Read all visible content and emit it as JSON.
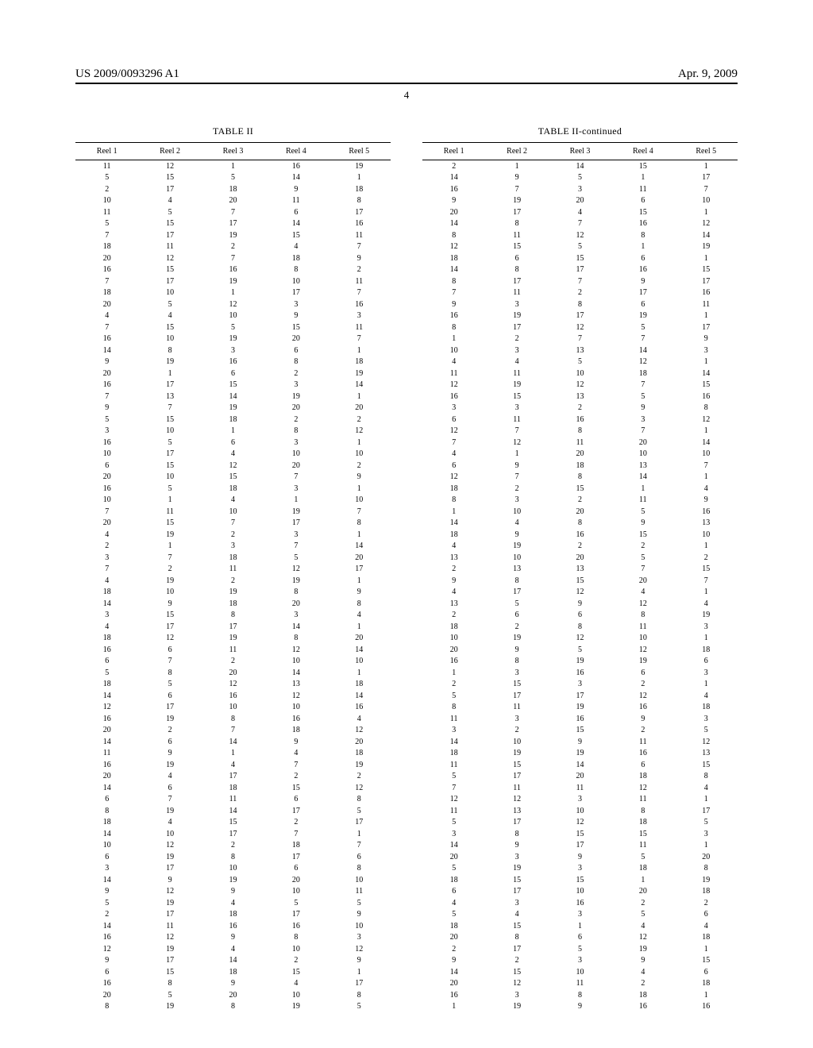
{
  "header": {
    "pub_number": "US 2009/0093296 A1",
    "pub_date": "Apr. 9, 2009"
  },
  "page_number": "4",
  "table_left": {
    "title": "TABLE II",
    "columns": [
      "Reel 1",
      "Reel 2",
      "Reel 3",
      "Reel 4",
      "Reel 5"
    ],
    "rows": [
      [
        11,
        12,
        1,
        16,
        19
      ],
      [
        5,
        15,
        5,
        14,
        1
      ],
      [
        2,
        17,
        18,
        9,
        18
      ],
      [
        10,
        4,
        20,
        11,
        8
      ],
      [
        11,
        5,
        7,
        6,
        17
      ],
      [
        5,
        15,
        17,
        14,
        16
      ],
      [
        7,
        17,
        19,
        15,
        11
      ],
      [
        18,
        11,
        2,
        4,
        7
      ],
      [
        20,
        12,
        7,
        18,
        9
      ],
      [
        16,
        15,
        16,
        8,
        2
      ],
      [
        7,
        17,
        19,
        10,
        11
      ],
      [
        18,
        10,
        1,
        17,
        7
      ],
      [
        20,
        5,
        12,
        3,
        16
      ],
      [
        4,
        4,
        10,
        9,
        3
      ],
      [
        7,
        15,
        5,
        15,
        11
      ],
      [
        16,
        10,
        19,
        20,
        7
      ],
      [
        14,
        8,
        3,
        6,
        1
      ],
      [
        9,
        19,
        16,
        8,
        18
      ],
      [
        20,
        1,
        6,
        2,
        19
      ],
      [
        16,
        17,
        15,
        3,
        14
      ],
      [
        7,
        13,
        14,
        19,
        1
      ],
      [
        9,
        7,
        19,
        20,
        20
      ],
      [
        5,
        15,
        18,
        2,
        2
      ],
      [
        3,
        10,
        1,
        8,
        12
      ],
      [
        16,
        5,
        6,
        3,
        1
      ],
      [
        10,
        17,
        4,
        10,
        10
      ],
      [
        6,
        15,
        12,
        20,
        2
      ],
      [
        20,
        10,
        15,
        7,
        9
      ],
      [
        16,
        5,
        18,
        3,
        1
      ],
      [
        10,
        1,
        4,
        1,
        10
      ],
      [
        7,
        11,
        10,
        19,
        7
      ],
      [
        20,
        15,
        7,
        17,
        8
      ],
      [
        4,
        19,
        2,
        3,
        1
      ],
      [
        2,
        1,
        3,
        7,
        14
      ],
      [
        3,
        7,
        18,
        5,
        20
      ],
      [
        7,
        2,
        11,
        12,
        17
      ],
      [
        4,
        19,
        2,
        19,
        1
      ],
      [
        18,
        10,
        19,
        8,
        9
      ],
      [
        14,
        9,
        18,
        20,
        8
      ],
      [
        3,
        15,
        8,
        3,
        4
      ],
      [
        4,
        17,
        17,
        14,
        1
      ],
      [
        18,
        12,
        19,
        8,
        20
      ],
      [
        16,
        6,
        11,
        12,
        14
      ],
      [
        6,
        7,
        2,
        10,
        10
      ],
      [
        5,
        8,
        20,
        14,
        1
      ],
      [
        18,
        5,
        12,
        13,
        18
      ],
      [
        14,
        6,
        16,
        12,
        14
      ],
      [
        12,
        17,
        10,
        10,
        16
      ],
      [
        16,
        19,
        8,
        16,
        4
      ],
      [
        20,
        2,
        7,
        18,
        12
      ],
      [
        14,
        6,
        14,
        9,
        20
      ],
      [
        11,
        9,
        1,
        4,
        18
      ],
      [
        16,
        19,
        4,
        7,
        19
      ],
      [
        20,
        4,
        17,
        2,
        2
      ],
      [
        14,
        6,
        18,
        15,
        12
      ],
      [
        6,
        7,
        11,
        6,
        8
      ],
      [
        8,
        19,
        14,
        17,
        5
      ],
      [
        18,
        4,
        15,
        2,
        17
      ],
      [
        14,
        10,
        17,
        7,
        1
      ],
      [
        10,
        12,
        2,
        18,
        7
      ],
      [
        6,
        19,
        8,
        17,
        6
      ],
      [
        3,
        17,
        10,
        6,
        8
      ],
      [
        14,
        9,
        19,
        20,
        10
      ],
      [
        9,
        12,
        9,
        10,
        11
      ],
      [
        5,
        19,
        4,
        5,
        5
      ],
      [
        2,
        17,
        18,
        17,
        9
      ],
      [
        14,
        11,
        16,
        16,
        10
      ],
      [
        16,
        12,
        9,
        8,
        3
      ],
      [
        12,
        19,
        4,
        10,
        12
      ],
      [
        9,
        17,
        14,
        2,
        9
      ],
      [
        6,
        15,
        18,
        15,
        1
      ],
      [
        16,
        8,
        9,
        4,
        17
      ],
      [
        20,
        5,
        20,
        10,
        8
      ],
      [
        8,
        19,
        8,
        19,
        5
      ]
    ]
  },
  "table_right": {
    "title": "TABLE II-continued",
    "columns": [
      "Reel 1",
      "Reel 2",
      "Reel 3",
      "Reel 4",
      "Reel 5"
    ],
    "rows": [
      [
        2,
        1,
        14,
        15,
        1
      ],
      [
        14,
        9,
        5,
        1,
        17
      ],
      [
        16,
        7,
        3,
        11,
        7
      ],
      [
        9,
        19,
        20,
        6,
        10
      ],
      [
        20,
        17,
        4,
        15,
        1
      ],
      [
        14,
        8,
        7,
        16,
        12
      ],
      [
        8,
        11,
        12,
        8,
        14
      ],
      [
        12,
        15,
        5,
        1,
        19
      ],
      [
        18,
        6,
        15,
        6,
        1
      ],
      [
        14,
        8,
        17,
        16,
        15
      ],
      [
        8,
        17,
        7,
        9,
        17
      ],
      [
        7,
        11,
        2,
        17,
        16
      ],
      [
        9,
        3,
        8,
        6,
        11
      ],
      [
        16,
        19,
        17,
        19,
        1
      ],
      [
        8,
        17,
        12,
        5,
        17
      ],
      [
        1,
        2,
        7,
        7,
        9
      ],
      [
        10,
        3,
        13,
        14,
        3
      ],
      [
        4,
        4,
        5,
        12,
        1
      ],
      [
        11,
        11,
        10,
        18,
        14
      ],
      [
        12,
        19,
        12,
        7,
        15
      ],
      [
        16,
        15,
        13,
        5,
        16
      ],
      [
        3,
        3,
        2,
        9,
        8
      ],
      [
        6,
        11,
        16,
        3,
        12
      ],
      [
        12,
        7,
        8,
        7,
        1
      ],
      [
        7,
        12,
        11,
        20,
        14
      ],
      [
        4,
        1,
        20,
        10,
        10
      ],
      [
        6,
        9,
        18,
        13,
        7
      ],
      [
        12,
        7,
        8,
        14,
        1
      ],
      [
        18,
        2,
        15,
        1,
        4
      ],
      [
        8,
        3,
        2,
        11,
        9
      ],
      [
        1,
        10,
        20,
        5,
        16
      ],
      [
        14,
        4,
        8,
        9,
        13
      ],
      [
        18,
        9,
        16,
        15,
        10
      ],
      [
        4,
        19,
        2,
        2,
        1
      ],
      [
        13,
        10,
        20,
        5,
        2
      ],
      [
        2,
        13,
        13,
        7,
        15
      ],
      [
        9,
        8,
        15,
        20,
        7
      ],
      [
        4,
        17,
        12,
        4,
        1
      ],
      [
        13,
        5,
        9,
        12,
        4
      ],
      [
        2,
        6,
        6,
        8,
        19
      ],
      [
        18,
        2,
        8,
        11,
        3
      ],
      [
        10,
        19,
        12,
        10,
        1
      ],
      [
        20,
        9,
        5,
        12,
        18
      ],
      [
        16,
        8,
        19,
        19,
        6
      ],
      [
        1,
        3,
        16,
        6,
        3
      ],
      [
        2,
        15,
        3,
        2,
        1
      ],
      [
        5,
        17,
        17,
        12,
        4
      ],
      [
        8,
        11,
        19,
        16,
        18
      ],
      [
        11,
        3,
        16,
        9,
        3
      ],
      [
        3,
        2,
        15,
        2,
        5
      ],
      [
        14,
        10,
        9,
        11,
        12
      ],
      [
        18,
        19,
        19,
        16,
        13
      ],
      [
        11,
        15,
        14,
        6,
        15
      ],
      [
        5,
        17,
        20,
        18,
        8
      ],
      [
        7,
        11,
        11,
        12,
        4
      ],
      [
        12,
        12,
        3,
        11,
        1
      ],
      [
        11,
        13,
        10,
        8,
        17
      ],
      [
        5,
        17,
        12,
        18,
        5
      ],
      [
        3,
        8,
        15,
        15,
        3
      ],
      [
        14,
        9,
        17,
        11,
        1
      ],
      [
        20,
        3,
        9,
        5,
        20
      ],
      [
        5,
        19,
        3,
        18,
        8
      ],
      [
        18,
        15,
        15,
        1,
        19
      ],
      [
        6,
        17,
        10,
        20,
        18
      ],
      [
        4,
        3,
        16,
        2,
        2
      ],
      [
        5,
        4,
        3,
        5,
        6
      ],
      [
        18,
        15,
        1,
        4,
        4
      ],
      [
        20,
        8,
        6,
        12,
        18
      ],
      [
        2,
        17,
        5,
        19,
        1
      ],
      [
        9,
        2,
        3,
        9,
        15
      ],
      [
        14,
        15,
        10,
        4,
        6
      ],
      [
        20,
        12,
        11,
        2,
        18
      ],
      [
        16,
        3,
        8,
        18,
        1
      ],
      [
        1,
        19,
        9,
        16,
        16
      ]
    ]
  }
}
